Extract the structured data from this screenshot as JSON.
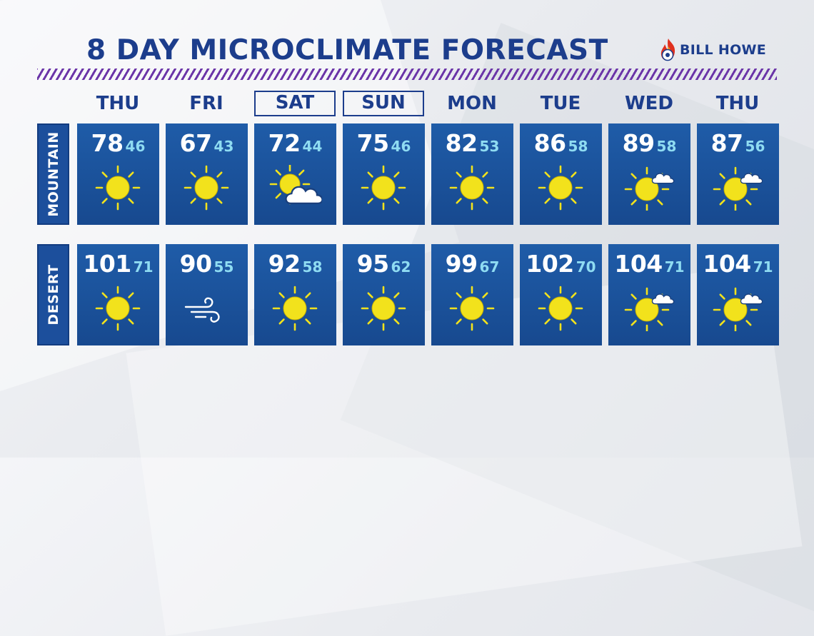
{
  "title": "8 DAY MICROCLIMATE FORECAST",
  "sponsor": "BILL HOWE",
  "days": [
    {
      "label": "THU",
      "boxed": false
    },
    {
      "label": "FRI",
      "boxed": false
    },
    {
      "label": "SAT",
      "boxed": true
    },
    {
      "label": "SUN",
      "boxed": true
    },
    {
      "label": "MON",
      "boxed": false
    },
    {
      "label": "TUE",
      "boxed": false
    },
    {
      "label": "WED",
      "boxed": false
    },
    {
      "label": "THU",
      "boxed": false
    }
  ],
  "rows": [
    {
      "name": "MOUNTAIN",
      "cells": [
        {
          "hi": "78",
          "lo": "46",
          "icon": "sun-icon"
        },
        {
          "hi": "67",
          "lo": "43",
          "icon": "sun-icon"
        },
        {
          "hi": "72",
          "lo": "44",
          "icon": "partly-cloudy-icon"
        },
        {
          "hi": "75",
          "lo": "46",
          "icon": "sun-icon"
        },
        {
          "hi": "82",
          "lo": "53",
          "icon": "sun-icon"
        },
        {
          "hi": "86",
          "lo": "58",
          "icon": "sun-icon"
        },
        {
          "hi": "89",
          "lo": "58",
          "icon": "mostly-sunny-icon"
        },
        {
          "hi": "87",
          "lo": "56",
          "icon": "mostly-sunny-icon"
        }
      ]
    },
    {
      "name": "DESERT",
      "cells": [
        {
          "hi": "101",
          "lo": "71",
          "icon": "sun-icon"
        },
        {
          "hi": "90",
          "lo": "55",
          "icon": "wind-icon"
        },
        {
          "hi": "92",
          "lo": "58",
          "icon": "sun-icon"
        },
        {
          "hi": "95",
          "lo": "62",
          "icon": "sun-icon"
        },
        {
          "hi": "99",
          "lo": "67",
          "icon": "sun-icon"
        },
        {
          "hi": "102",
          "lo": "70",
          "icon": "sun-icon"
        },
        {
          "hi": "104",
          "lo": "71",
          "icon": "mostly-sunny-icon"
        },
        {
          "hi": "104",
          "lo": "71",
          "icon": "mostly-sunny-icon"
        }
      ]
    }
  ],
  "colors": {
    "title": "#1c3d8c",
    "card": "#1c52a0",
    "low_temp": "#8fdcf2",
    "sun": "#f2e21c",
    "stripe": "#6b35a8"
  }
}
